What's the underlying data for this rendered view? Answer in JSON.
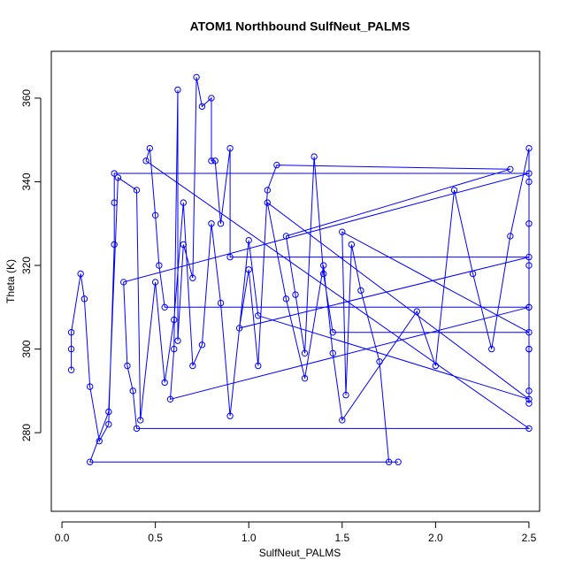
{
  "chart_data": {
    "type": "line",
    "title": "ATOM1 Northbound SulfNeut_PALMS",
    "x_label": "SulfNeut_PALMS",
    "y_label": "Theta (K)",
    "color": "#0000ff",
    "marker": "open-circle",
    "xlim": [
      -0.057,
      2.557
    ],
    "ylim": [
      261.2,
      371.2
    ],
    "xticks": [
      {
        "value": 0,
        "label": "0.0"
      },
      0.5,
      {
        "value": 1,
        "label": "1.0"
      },
      1.5,
      {
        "value": 2,
        "label": "2.0"
      },
      2.5
    ],
    "yticks": [
      280,
      300,
      320,
      340,
      360
    ],
    "x": [
      0.05,
      0.05,
      0.05,
      0.1,
      0.12,
      0.15,
      0.2,
      0.25,
      0.28,
      0.28,
      0.28,
      2.5,
      0.33,
      0.35,
      0.38,
      0.4,
      2.5,
      0.45,
      0.47,
      0.5,
      0.52,
      0.55,
      2.5,
      0.58,
      0.6,
      0.62,
      0.62,
      0.65,
      0.7,
      0.72,
      0.75,
      0.8,
      0.8,
      0.82,
      0.85,
      0.9,
      0.9,
      2.5,
      0.95,
      1.0,
      1.05,
      1.1,
      1.15,
      2.4,
      1.2,
      1.25,
      1.3,
      1.35,
      1.4,
      1.45,
      2.5,
      1.5,
      1.52,
      1.55,
      1.6,
      1.7,
      1.75,
      1.8,
      0.15,
      0.25,
      0.3,
      0.4,
      0.42,
      0.5,
      0.55,
      0.6,
      0.65,
      0.7,
      0.75,
      0.8,
      0.85,
      0.9,
      1.0,
      1.05,
      2.5,
      1.1,
      1.2,
      1.3,
      1.4,
      1.45,
      1.5,
      1.9,
      2.0,
      2.1,
      2.2,
      2.3,
      2.4,
      2.5,
      2.5,
      2.5,
      2.5,
      2.5,
      2.5,
      2.5,
      2.5,
      2.5
    ],
    "y": [
      295,
      300,
      304,
      318,
      312,
      291,
      278,
      282,
      325,
      335,
      342,
      342,
      316,
      296,
      290,
      281,
      281,
      345,
      348,
      332,
      320,
      310,
      310,
      288,
      300,
      362,
      302,
      325,
      317,
      365,
      358,
      360,
      345,
      345,
      330,
      348,
      322,
      322,
      305,
      319,
      296,
      338,
      344,
      343,
      327,
      313,
      299,
      346,
      318,
      304,
      304,
      328,
      289,
      325,
      314,
      297,
      273,
      273,
      273,
      285,
      341,
      338,
      283,
      316,
      292,
      307,
      335,
      296,
      301,
      330,
      311,
      284,
      326,
      308,
      288,
      335,
      312,
      293,
      320,
      299,
      283,
      309,
      296,
      338,
      318,
      300,
      327,
      348,
      340,
      330,
      320,
      310,
      300,
      290,
      287,
      300
    ]
  }
}
